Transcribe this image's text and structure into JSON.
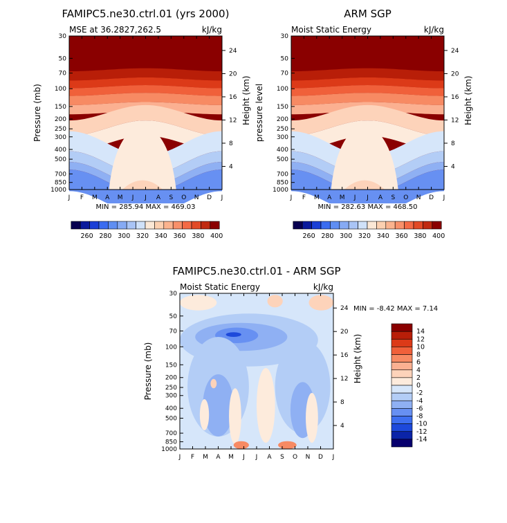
{
  "chart_data": [
    {
      "type": "contour",
      "title": "FAMIPC5.ne30.ctrl.01 (yrs 2000)",
      "subtitle_left": "MSE at 36.2827,262.5",
      "units": "kJ/kg",
      "ylabel": "Pressure (mb)",
      "ylabel_right": "Height (km)",
      "x_ticks": [
        "J",
        "F",
        "M",
        "A",
        "M",
        "J",
        "J",
        "A",
        "S",
        "O",
        "N",
        "D",
        "J"
      ],
      "y_ticks": [
        "30",
        "50",
        "70",
        "100",
        "150",
        "200",
        "250",
        "300",
        "400",
        "500",
        "700",
        "850",
        "1000"
      ],
      "y_ticks_right": [
        "24",
        "20",
        "16",
        "12",
        "8",
        "4"
      ],
      "min_label": "MIN = ",
      "min_value": "285.94",
      "max_label": "MAX = ",
      "max_value": "469.03",
      "stats_text": "MIN = 285.94 MAX = 469.03"
    },
    {
      "type": "contour",
      "title": "ARM SGP",
      "subtitle_left": "Moist Static Energy",
      "units": "kJ/kg",
      "ylabel": "pressure level",
      "ylabel_right": "Height (km)",
      "x_ticks": [
        "J",
        "F",
        "M",
        "A",
        "M",
        "J",
        "J",
        "A",
        "S",
        "O",
        "N",
        "D",
        "J"
      ],
      "y_ticks": [
        "30",
        "50",
        "70",
        "100",
        "150",
        "200",
        "250",
        "300",
        "400",
        "500",
        "700",
        "850",
        "1000"
      ],
      "y_ticks_right": [
        "24",
        "20",
        "16",
        "12",
        "8",
        "4"
      ],
      "stats_text": "MIN = 282.63 MAX = 468.50"
    },
    {
      "type": "contour",
      "title": "FAMIPC5.ne30.ctrl.01 - ARM SGP",
      "subtitle_left": "Moist Static Energy",
      "units": "kJ/kg",
      "ylabel": "Pressure (mb)",
      "ylabel_right": "Height (km)",
      "x_ticks": [
        "J",
        "F",
        "M",
        "A",
        "M",
        "J",
        "J",
        "A",
        "S",
        "O",
        "N",
        "D",
        "J"
      ],
      "y_ticks": [
        "30",
        "50",
        "70",
        "100",
        "150",
        "200",
        "250",
        "300",
        "400",
        "500",
        "700",
        "850",
        "1000"
      ],
      "y_ticks_right": [
        "24",
        "20",
        "16",
        "12",
        "8",
        "4"
      ],
      "stats_text": "MIN =    -8.42 MAX =     7.14"
    }
  ],
  "colorbar_top": {
    "labels": [
      "260",
      "280",
      "300",
      "320",
      "340",
      "360",
      "380",
      "400"
    ],
    "colors": [
      "#08004f",
      "#0a1a9c",
      "#1a3fd6",
      "#3a6cf0",
      "#5f8ef2",
      "#86aaf3",
      "#a9c4f5",
      "#cfe1f9",
      "#fbe8d6",
      "#fcd0b0",
      "#fbb38e",
      "#f8906a",
      "#f46a45",
      "#e24a26",
      "#c02a10",
      "#8a0000"
    ]
  },
  "colorbar_diff": {
    "labels": [
      "14",
      "12",
      "10",
      "8",
      "6",
      "4",
      "2",
      "0",
      "-2",
      "-4",
      "-6",
      "-8",
      "-10",
      "-12",
      "-14"
    ],
    "colors": [
      "#8a0000",
      "#b81e08",
      "#dc3a18",
      "#f0603a",
      "#f78a63",
      "#fbb091",
      "#fdd3ba",
      "#fdebdc",
      "#d6e6fa",
      "#b3cdf6",
      "#8fb0f3",
      "#6790f2",
      "#3e6ff0",
      "#1d49db",
      "#0b24a8",
      "#07006e"
    ]
  },
  "legend": {
    "colorbar_label_top": "",
    "colorbar_label_diff": ""
  }
}
